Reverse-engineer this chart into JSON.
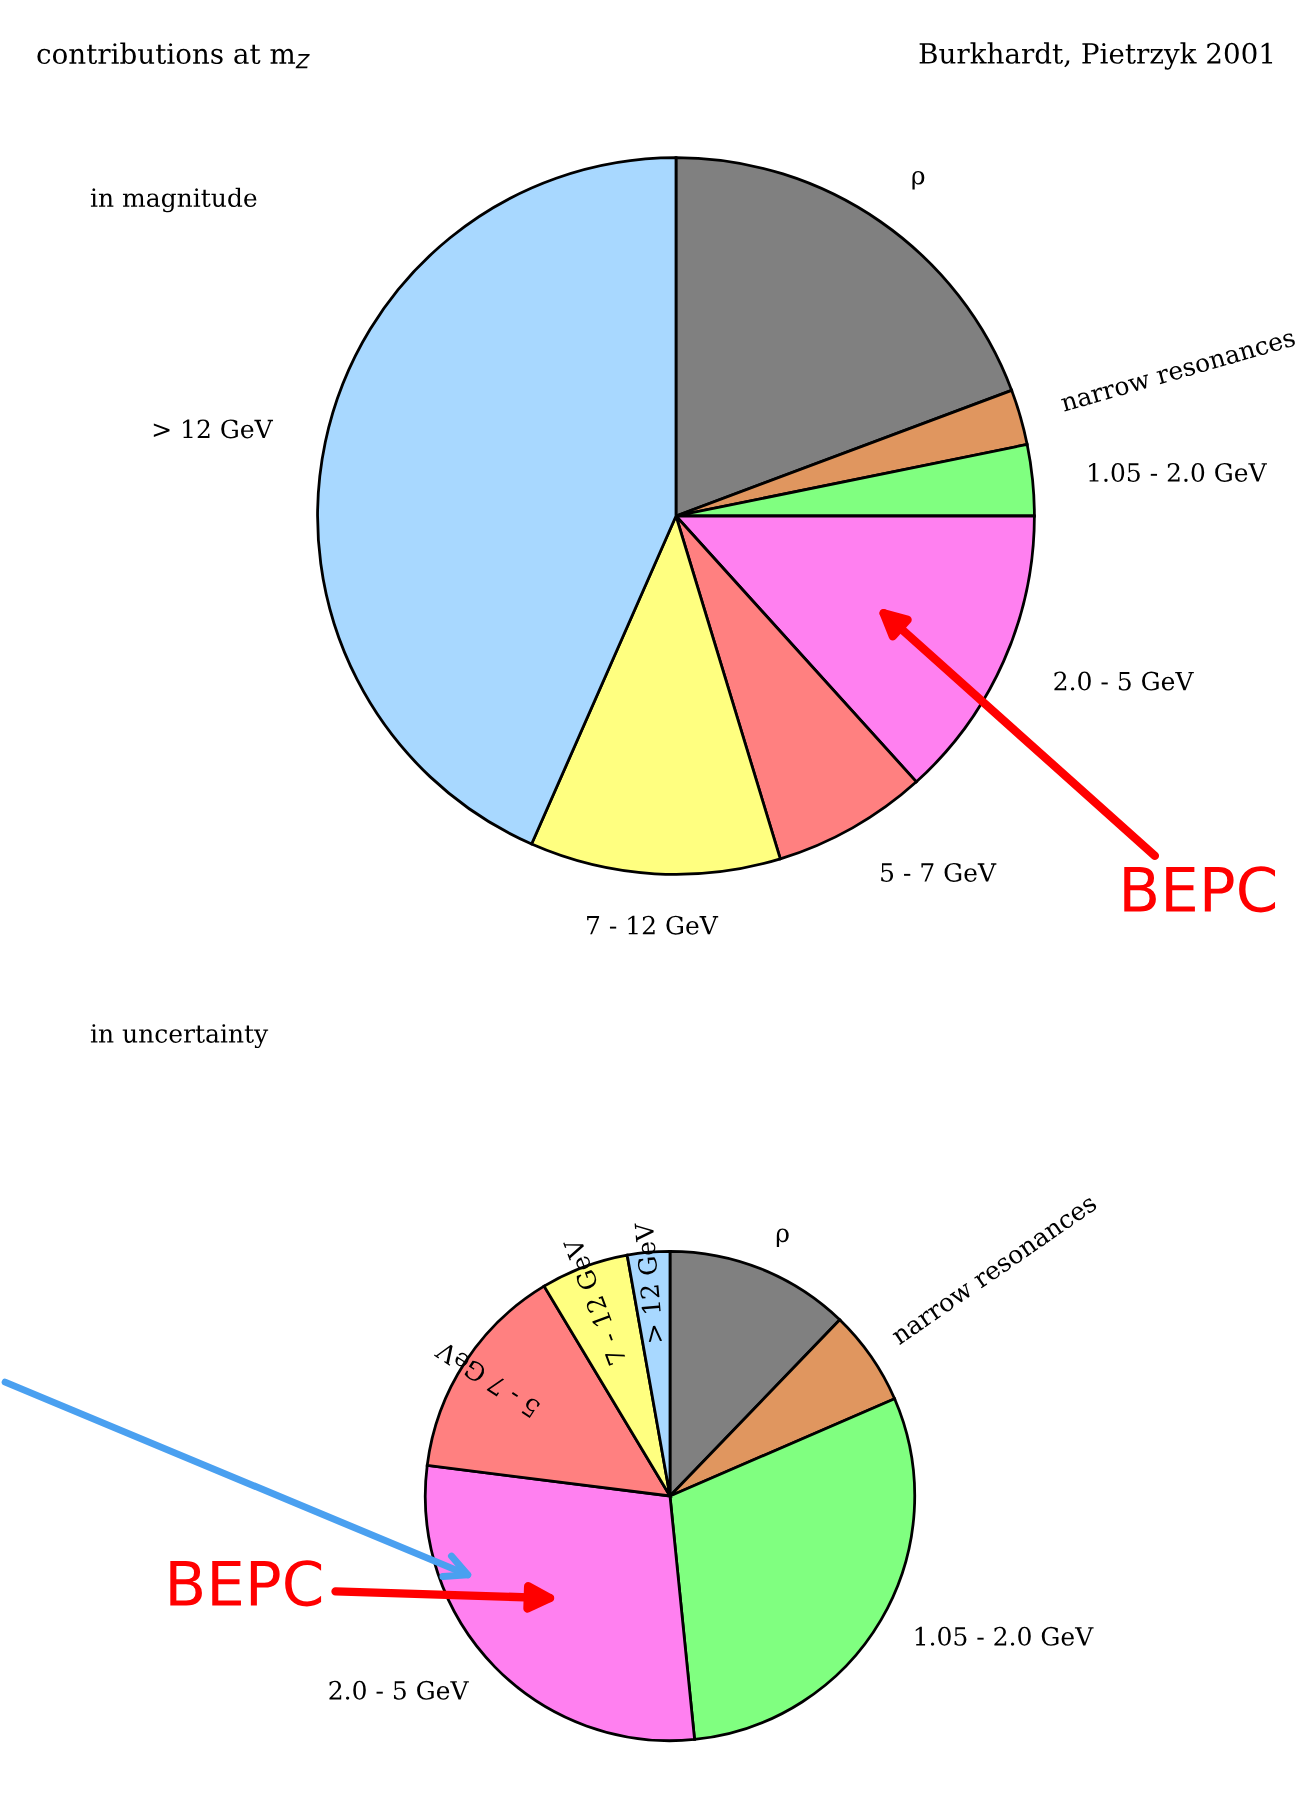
{
  "chart_data": [
    {
      "type": "pie",
      "title": "contributions at m$_{Z}$",
      "subtitle": "in magnitude",
      "annotations": [
        "Burkhardt, Pietrzyk 2001",
        {
          "text": "BEPC",
          "x": "2.0 - 5 GeV"
        }
      ],
      "categories": [
        "ρ",
        "narrow resonances",
        "1.05 - 2.0 GeV",
        "2.0 - 5 GeV",
        "5 - 7 GeV",
        "7 - 12 GeV",
        "> 12 GeV"
      ],
      "values": [
        19.3,
        2.5,
        3.2,
        13.3,
        7.0,
        11.3,
        43.4
      ],
      "colors": [
        "#808080",
        "#e0965f",
        "#80ff80",
        "#ff80f0",
        "#ff8080",
        "#ffff80",
        "#a8d8ff"
      ]
    },
    {
      "type": "pie",
      "subtitle": "in uncertainty",
      "annotations": [
        {
          "text": "BEPC",
          "x": "2.0 - 5 GeV"
        }
      ],
      "categories": [
        "ρ",
        "narrow resonances",
        "1.05 - 2.0 GeV",
        "2.0 - 5 GeV",
        "5 - 7 GeV",
        "7 - 12 GeV",
        "> 12 GeV"
      ],
      "values": [
        12.2,
        6.3,
        29.9,
        28.6,
        14.4,
        5.8,
        2.8
      ],
      "colors": [
        "#808080",
        "#e0965f",
        "#80ff80",
        "#ff80f0",
        "#ff8080",
        "#ffff80",
        "#a8d8ff"
      ]
    }
  ]
}
